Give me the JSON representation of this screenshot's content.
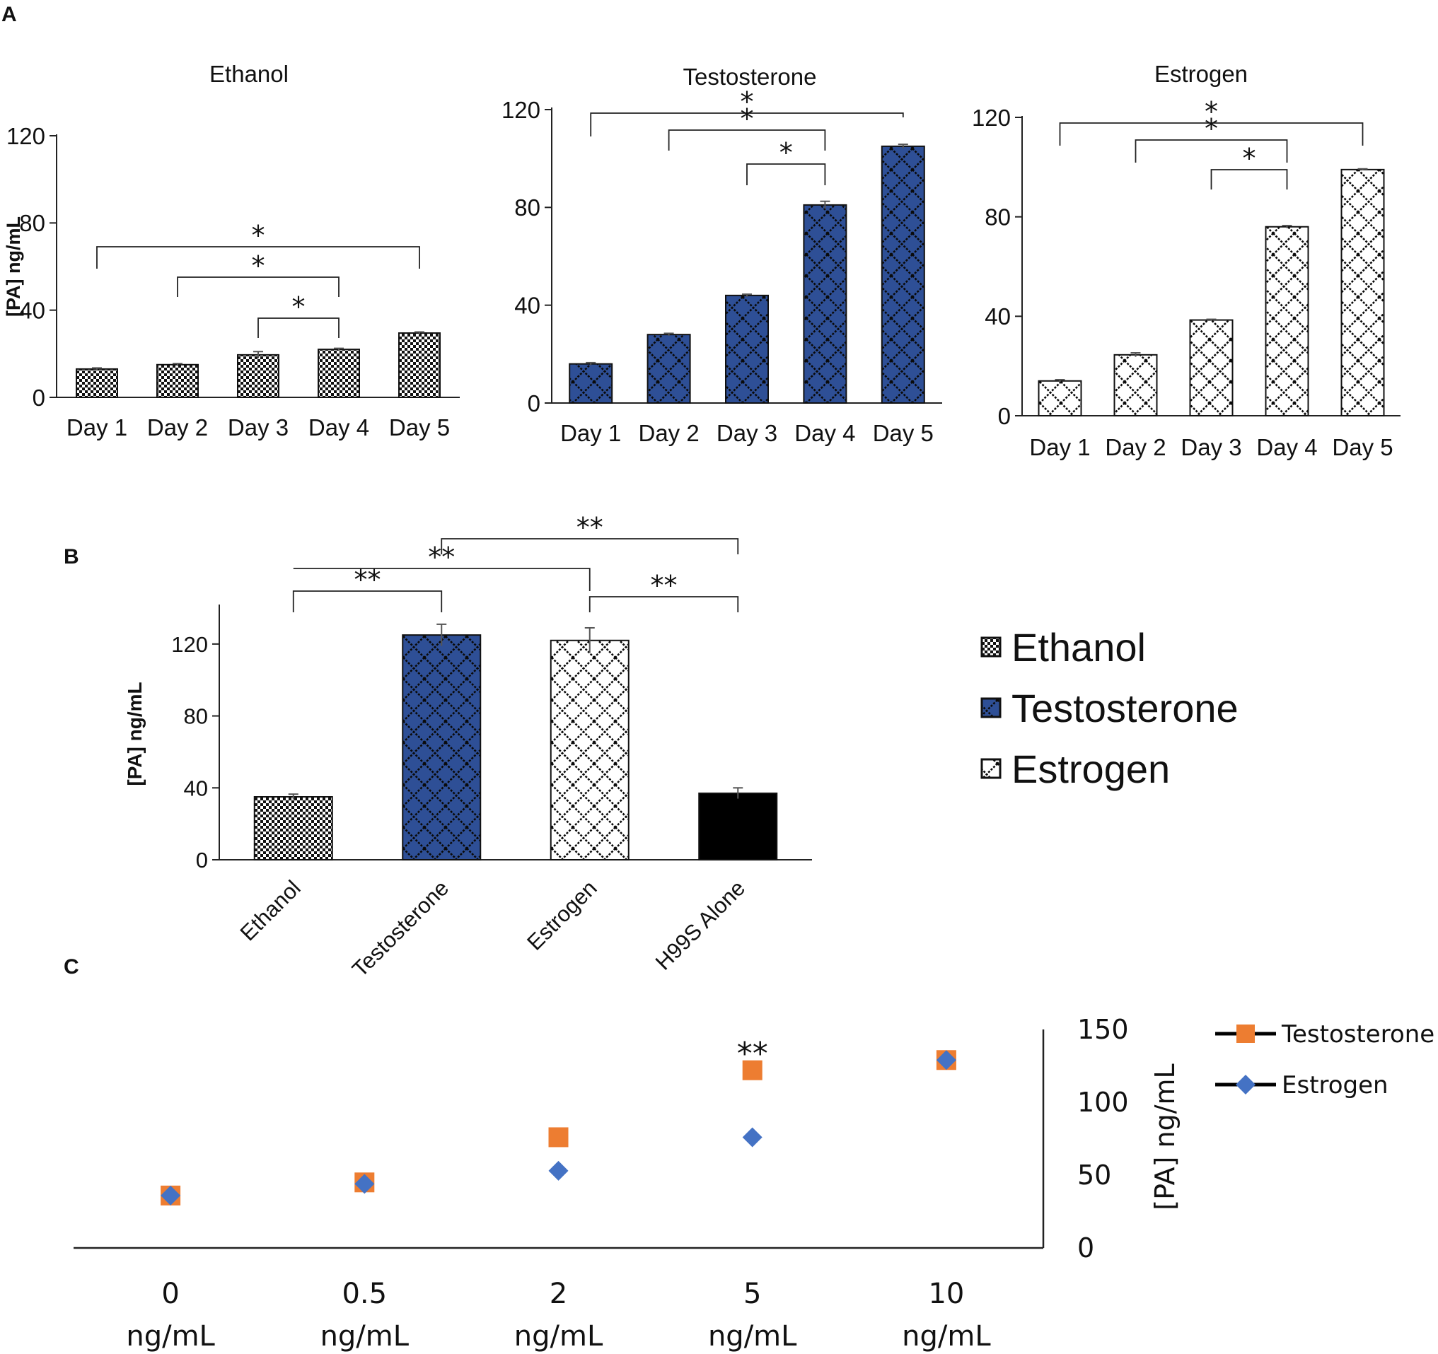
{
  "panel_labels": {
    "a": "A",
    "b": "B",
    "c": "C"
  },
  "colors": {
    "ethanol": "#ffffff",
    "testosterone": "#2e4f96",
    "estrogen": "#ffffff",
    "h99s": "#000000",
    "orange": "#ed7d31",
    "blue": "#4472c4",
    "axis": "#222222"
  },
  "chart_data": [
    {
      "id": "A1",
      "type": "bar",
      "title": "Ethanol",
      "ylabel": "[PA] ng/mL",
      "categories": [
        "Day 1",
        "Day 2",
        "Day 3",
        "Day 4",
        "Day 5"
      ],
      "values": [
        13,
        15,
        19.5,
        22,
        29.5
      ],
      "errors": [
        0.5,
        0.5,
        1.5,
        0.5,
        0.5
      ],
      "ylim": [
        0,
        120
      ],
      "yticks": [
        "0",
        "40",
        "80",
        "120"
      ],
      "pattern": "checker",
      "fill": "#ffffff",
      "significance": [
        {
          "from": 0,
          "to": 4,
          "label": "*"
        },
        {
          "from": 1,
          "to": 3,
          "label": "*"
        },
        {
          "from": 2,
          "to": 3,
          "label": "*"
        }
      ]
    },
    {
      "id": "A2",
      "type": "bar",
      "title": "Testosterone",
      "ylabel": "",
      "categories": [
        "Day 1",
        "Day 2",
        "Day 3",
        "Day 4",
        "Day 5"
      ],
      "values": [
        16,
        28,
        44,
        81,
        105
      ],
      "errors": [
        0.5,
        0.5,
        0.5,
        1.5,
        0.8
      ],
      "ylim": [
        0,
        120
      ],
      "yticks": [
        "0",
        "40",
        "80",
        "120"
      ],
      "pattern": "diamond",
      "fill": "#2e4f96",
      "significance": [
        {
          "from": 0,
          "to": 4,
          "label": "*"
        },
        {
          "from": 1,
          "to": 3,
          "label": "*"
        },
        {
          "from": 2,
          "to": 3,
          "label": "*"
        }
      ]
    },
    {
      "id": "A3",
      "type": "bar",
      "title": "Estrogen",
      "ylabel": "",
      "categories": [
        "Day 1",
        "Day 2",
        "Day 3",
        "Day 4",
        "Day 5"
      ],
      "values": [
        14,
        24.5,
        38.5,
        76,
        99
      ],
      "errors": [
        0.5,
        0.8,
        0.3,
        0.5,
        0.3
      ],
      "ylim": [
        0,
        120
      ],
      "yticks": [
        "0",
        "40",
        "80",
        "120"
      ],
      "pattern": "diamond",
      "fill": "#ffffff",
      "significance": [
        {
          "from": 0,
          "to": 4,
          "label": "*"
        },
        {
          "from": 1,
          "to": 3,
          "label": "*"
        },
        {
          "from": 2,
          "to": 3,
          "label": "*"
        }
      ]
    },
    {
      "id": "B",
      "type": "bar",
      "title": "",
      "ylabel": "[PA] ng/mL",
      "categories": [
        "Ethanol",
        "Testosterone",
        "Estrogen",
        "H99S Alone"
      ],
      "values": [
        35,
        125,
        122,
        37
      ],
      "errors": [
        1.5,
        6,
        7,
        3
      ],
      "ylim": [
        0,
        140
      ],
      "yticks": [
        "0",
        "40",
        "80",
        "120"
      ],
      "patterns": [
        "checker",
        "diamond",
        "diamond",
        "solid"
      ],
      "fills": [
        "#ffffff",
        "#2e4f96",
        "#ffffff",
        "#000000"
      ],
      "legend": [
        "Ethanol",
        "Testosterone",
        "Estrogen"
      ],
      "significance": [
        {
          "from": 0,
          "to": 1,
          "label": "**"
        },
        {
          "from": 0,
          "to": 2,
          "label": "**"
        },
        {
          "from": 1,
          "to": 3,
          "label": "**"
        },
        {
          "from": 2,
          "to": 3,
          "label": "**"
        }
      ]
    },
    {
      "id": "C",
      "type": "scatter",
      "title": "",
      "ylabel": "[PA] ng/mL",
      "categories": [
        "0\nng/mL",
        "0.5\nng/mL",
        "2\nng/mL",
        "5\nng/mL",
        "10\nng/mL"
      ],
      "ylim": [
        0,
        150
      ],
      "yticks": [
        "0",
        "50",
        "100",
        "150"
      ],
      "series": [
        {
          "name": "Testosterone",
          "marker": "square",
          "color": "#ed7d31",
          "values": [
            36,
            45,
            76,
            122,
            129
          ]
        },
        {
          "name": "Estrogen",
          "marker": "diamond",
          "color": "#4472c4",
          "values": [
            36,
            44,
            53,
            76,
            129
          ]
        }
      ],
      "annotations": [
        {
          "index": 3,
          "label": "**"
        }
      ]
    }
  ]
}
